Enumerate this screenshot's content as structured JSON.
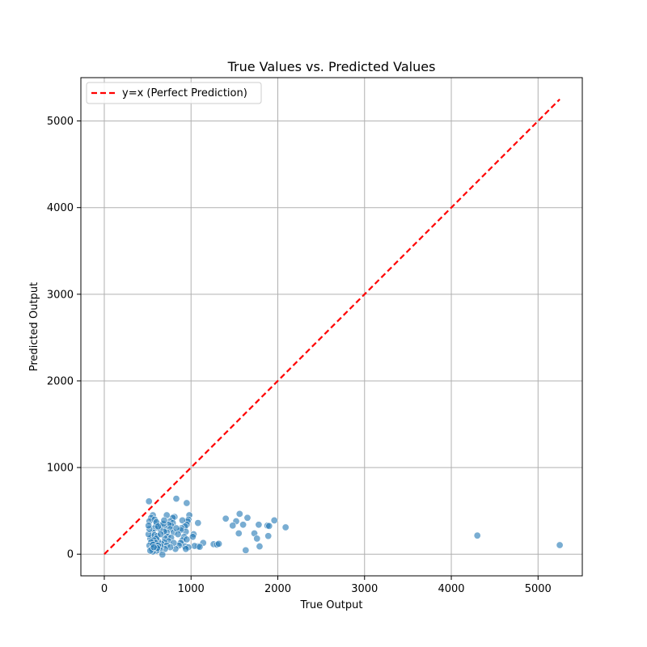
{
  "chart_data": {
    "type": "scatter",
    "title": "True Values vs. Predicted Values",
    "xlabel": "True Output",
    "ylabel": "Predicted Output",
    "xlim": [
      -270,
      5510
    ],
    "ylim": [
      -250,
      5500
    ],
    "xticks": [
      0,
      1000,
      2000,
      3000,
      4000,
      5000
    ],
    "yticks": [
      0,
      1000,
      2000,
      3000,
      4000,
      5000
    ],
    "grid": true,
    "legend_position": "top-left",
    "colors": {
      "points": "#1f77b4",
      "reference_line": "#ff0000",
      "grid": "#b0b0b0"
    },
    "reference_line": {
      "label": "y=x (Perfect Prediction)",
      "style": "dashed",
      "from": [
        0,
        0
      ],
      "to": [
        5250,
        5250
      ]
    },
    "series": [
      {
        "points": [
          [
            515,
            610
          ],
          [
            830,
            640
          ],
          [
            950,
            590
          ],
          [
            1560,
            465
          ],
          [
            1650,
            420
          ],
          [
            1400,
            410
          ],
          [
            1520,
            380
          ],
          [
            1960,
            390
          ],
          [
            1600,
            340
          ],
          [
            1480,
            330
          ],
          [
            1780,
            340
          ],
          [
            1880,
            330
          ],
          [
            1900,
            325
          ],
          [
            1550,
            240
          ],
          [
            1730,
            240
          ],
          [
            1890,
            210
          ],
          [
            1760,
            180
          ],
          [
            2090,
            310
          ],
          [
            1790,
            90
          ],
          [
            1630,
            45
          ],
          [
            1260,
            115
          ],
          [
            1300,
            110
          ],
          [
            1320,
            120
          ],
          [
            1140,
            130
          ],
          [
            1080,
            90
          ],
          [
            1040,
            95
          ],
          [
            1100,
            85
          ],
          [
            1080,
            360
          ],
          [
            1030,
            230
          ],
          [
            1020,
            200
          ],
          [
            980,
            450
          ],
          [
            970,
            400
          ],
          [
            960,
            380
          ],
          [
            900,
            390
          ],
          [
            950,
            340
          ],
          [
            930,
            320
          ],
          [
            890,
            300
          ],
          [
            940,
            260
          ],
          [
            880,
            280
          ],
          [
            920,
            200
          ],
          [
            900,
            160
          ],
          [
            950,
            170
          ],
          [
            880,
            130
          ],
          [
            930,
            90
          ],
          [
            970,
            80
          ],
          [
            940,
            60
          ],
          [
            860,
            100
          ],
          [
            820,
            60
          ],
          [
            810,
            430
          ],
          [
            790,
            420
          ],
          [
            760,
            380
          ],
          [
            790,
            360
          ],
          [
            770,
            330
          ],
          [
            720,
            450
          ],
          [
            740,
            340
          ],
          [
            700,
            300
          ],
          [
            760,
            290
          ],
          [
            800,
            250
          ],
          [
            830,
            300
          ],
          [
            850,
            230
          ],
          [
            720,
            250
          ],
          [
            690,
            260
          ],
          [
            730,
            200
          ],
          [
            700,
            180
          ],
          [
            770,
            190
          ],
          [
            740,
            150
          ],
          [
            800,
            130
          ],
          [
            690,
            140
          ],
          [
            660,
            120
          ],
          [
            720,
            100
          ],
          [
            760,
            80
          ],
          [
            700,
            60
          ],
          [
            650,
            90
          ],
          [
            640,
            50
          ],
          [
            600,
            40
          ],
          [
            560,
            30
          ],
          [
            670,
            -5
          ],
          [
            620,
            150
          ],
          [
            650,
            340
          ],
          [
            680,
            350
          ],
          [
            640,
            290
          ],
          [
            600,
            340
          ],
          [
            580,
            300
          ],
          [
            560,
            250
          ],
          [
            550,
            200
          ],
          [
            530,
            180
          ],
          [
            510,
            230
          ],
          [
            560,
            450
          ],
          [
            540,
            420
          ],
          [
            520,
            380
          ],
          [
            580,
            400
          ],
          [
            600,
            370
          ],
          [
            620,
            320
          ],
          [
            580,
            220
          ],
          [
            610,
            210
          ],
          [
            600,
            180
          ],
          [
            570,
            160
          ],
          [
            590,
            130
          ],
          [
            540,
            140
          ],
          [
            520,
            100
          ],
          [
            550,
            60
          ],
          [
            530,
            40
          ],
          [
            560,
            110
          ],
          [
            620,
            100
          ],
          [
            610,
            70
          ],
          [
            570,
            80
          ],
          [
            520,
            290
          ],
          [
            510,
            330
          ],
          [
            650,
            230
          ],
          [
            690,
            390
          ],
          [
            4300,
            215
          ],
          [
            5250,
            105
          ]
        ]
      }
    ]
  }
}
